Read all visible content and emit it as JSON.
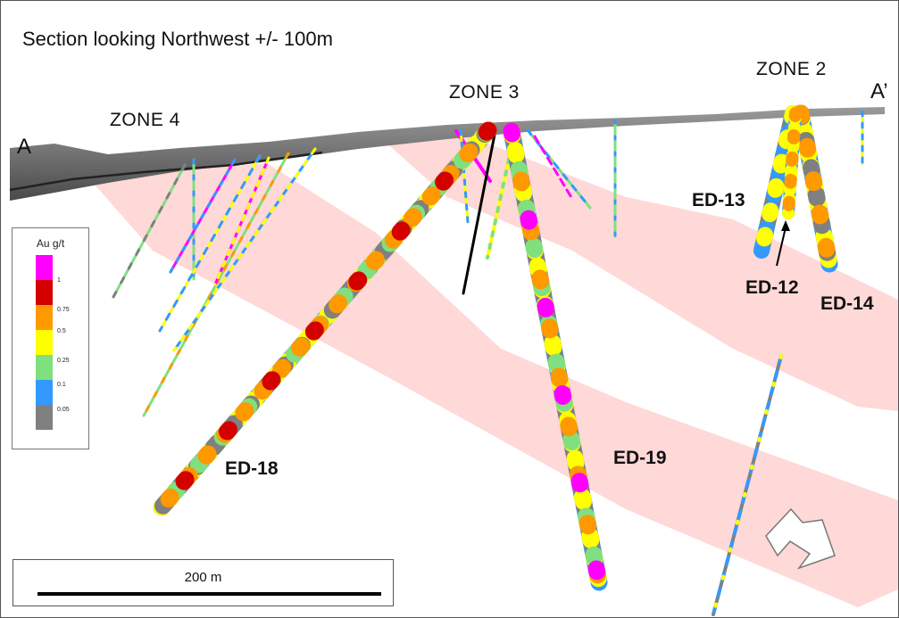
{
  "title": "Section looking Northwest +/- 100m",
  "section": {
    "start": "A",
    "end": "A’"
  },
  "zones": [
    "ZONE 4",
    "ZONE 3",
    "ZONE 2"
  ],
  "drill_holes": [
    "ED-13",
    "ED-12",
    "ED-14",
    "ED-18",
    "ED-19"
  ],
  "legend": {
    "title": "Au g/t",
    "classes": [
      {
        "label": "1",
        "color": "#ff00ff"
      },
      {
        "label": "0.75",
        "color": "#d40000"
      },
      {
        "label": "0.5",
        "color": "#ff9900"
      },
      {
        "label": "0.25",
        "color": "#ffff00"
      },
      {
        "label": "0.1",
        "color": "#80e080"
      },
      {
        "label": "0.05",
        "color": "#3399ff"
      },
      {
        "label": "",
        "color": "#808080"
      }
    ]
  },
  "scale_bar": {
    "label": "200 m"
  },
  "mineralized_zone_color": "#ffd0d0",
  "direction_arrow": "arrow-icon"
}
